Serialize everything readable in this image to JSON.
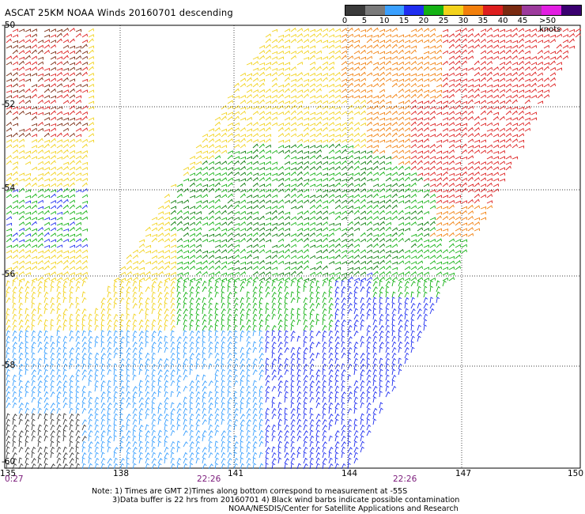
{
  "title": "ASCAT 25KM NOAA Winds 20160701 descending",
  "legend": {
    "labels": [
      "0",
      "5",
      "10",
      "15",
      "20",
      "25",
      "30",
      "35",
      "40",
      "45",
      ">50 knots"
    ],
    "colors": [
      "#3a3a3a",
      "#7a7a7a",
      "#3aa0ff",
      "#1f2ef0",
      "#14b214",
      "#f2d21c",
      "#f27f0c",
      "#dd1e1e",
      "#7a2a10",
      "#9c3a9c",
      "#e21ee2",
      "#3a0070"
    ]
  },
  "map": {
    "lon_ticks": [
      "135",
      "138",
      "141",
      "144",
      "147",
      "150"
    ],
    "lat_ticks": [
      "-50",
      "-52",
      "-54",
      "-56",
      "-58",
      "-60"
    ],
    "lon_range": [
      135,
      150
    ],
    "lat_range": [
      -60,
      -50
    ],
    "grid": true
  },
  "times": [
    "0:27",
    "22:26",
    "22:26"
  ],
  "notes": {
    "line1": "Note: 1) Times are GMT 2)Times along bottom correspond to measurement at -55S",
    "line2": "3)Data buffer is 22 hrs from 20160701 4) Black wind barbs indicate possible contamination",
    "line3": "NOAA/NESDIS/Center for Satellite Applications and Research"
  }
}
